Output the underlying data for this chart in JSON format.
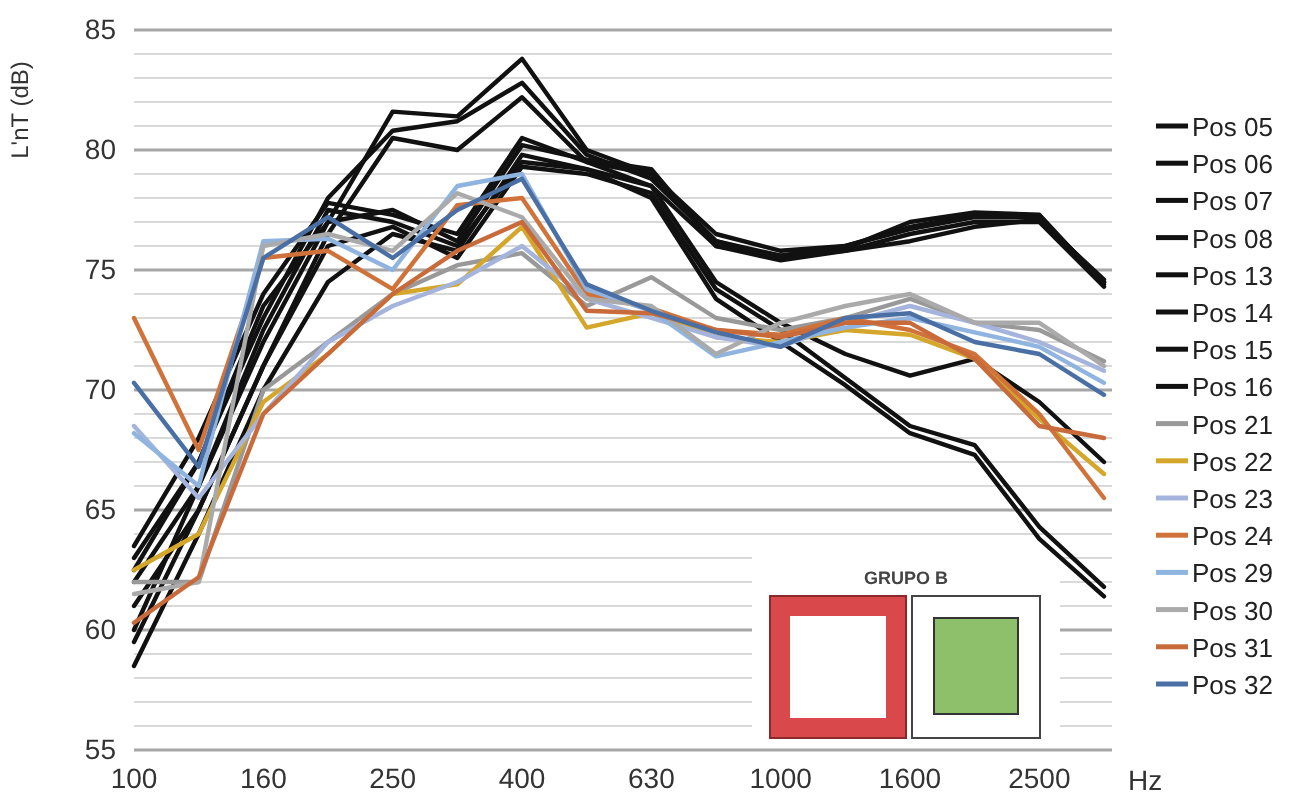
{
  "chart_data": {
    "type": "line",
    "ylabel": "L'nT (dB)",
    "xlabel": "Hz",
    "annotations": [
      "GRUPO B"
    ],
    "categories": [
      "100",
      null,
      "160",
      null,
      "250",
      null,
      "400",
      null,
      "630",
      null,
      "1000",
      null,
      "1600",
      null,
      "2500",
      null
    ],
    "ylim": [
      55,
      85
    ],
    "yticks": [
      55,
      {
        "value": 56,
        "label": null
      },
      {
        "value": 57,
        "label": null
      },
      {
        "value": 58,
        "label": null
      },
      {
        "value": 59,
        "label": null
      },
      60,
      {
        "value": 61,
        "label": null
      },
      {
        "value": 62,
        "label": null
      },
      {
        "value": 63,
        "label": null
      },
      {
        "value": 64,
        "label": null
      },
      65,
      {
        "value": 66,
        "label": null
      },
      {
        "value": 67,
        "label": null
      },
      {
        "value": 68,
        "label": null
      },
      {
        "value": 69,
        "label": null
      },
      70,
      {
        "value": 71,
        "label": null
      },
      {
        "value": 72,
        "label": null
      },
      {
        "value": 73,
        "label": null
      },
      {
        "value": 74,
        "label": null
      },
      75,
      {
        "value": 76,
        "label": null
      },
      {
        "value": 77,
        "label": null
      },
      {
        "value": 78,
        "label": null
      },
      {
        "value": 79,
        "label": null
      },
      80,
      {
        "value": 81,
        "label": null
      },
      {
        "value": 82,
        "label": null
      },
      {
        "value": 83,
        "label": null
      },
      {
        "value": 84,
        "label": null
      },
      85
    ],
    "grid": "y",
    "legend": "right",
    "marker": "none",
    "line_style": "solid",
    "series": [
      {
        "name": "Pos 05",
        "color": "#111111",
        "values": [
          62,
          66,
          72,
          77,
          81.6,
          81.4,
          83.8,
          80,
          79,
          76.5,
          75.8,
          76,
          76.8,
          77.3,
          77.2,
          74.5
        ]
      },
      {
        "name": "Pos 06",
        "color": "#111111",
        "values": [
          63,
          67,
          73,
          78,
          80.8,
          81.2,
          82.8,
          79.8,
          78.8,
          76.2,
          75.6,
          75.8,
          76.5,
          77,
          77,
          74.3
        ]
      },
      {
        "name": "Pos 07",
        "color": "#111111",
        "values": [
          61,
          65,
          71,
          76.5,
          80.5,
          80,
          82.2,
          79.5,
          78.5,
          76,
          75.4,
          75.8,
          76.2,
          76.8,
          77.1,
          74.6
        ]
      },
      {
        "name": "Pos 08",
        "color": "#111111",
        "values": [
          63.5,
          68,
          74,
          77.8,
          77.3,
          76.5,
          80.5,
          79.5,
          79,
          76.2,
          75.5,
          75.9,
          77,
          77.4,
          77.3,
          74.4
        ]
      },
      {
        "name": "Pos 13",
        "color": "#111111",
        "values": [
          60,
          66,
          72.5,
          77.5,
          77,
          76,
          79.5,
          79.2,
          78.5,
          74.5,
          72.8,
          71.5,
          70.6,
          71.3,
          69.5,
          67
        ]
      },
      {
        "name": "Pos 14",
        "color": "#111111",
        "values": [
          59.5,
          65,
          71,
          76,
          76.8,
          75.5,
          79.3,
          79,
          78.2,
          74.2,
          72.5,
          70.5,
          68.5,
          67.7,
          64.3,
          61.8
        ]
      },
      {
        "name": "Pos 15",
        "color": "#111111",
        "values": [
          58.5,
          64,
          70,
          74.5,
          76.5,
          75.8,
          79.8,
          79.2,
          78,
          73.8,
          72,
          70.2,
          68.2,
          67.3,
          63.8,
          61.4
        ]
      },
      {
        "name": "Pos 16",
        "color": "#111111",
        "values": [
          62.5,
          67,
          73.5,
          77,
          77.5,
          76.2,
          80.2,
          79.6,
          79.2,
          76,
          75.6,
          76,
          76.7,
          77.2,
          77.2,
          74.5
        ]
      },
      {
        "name": "Pos 21",
        "color": "#999999",
        "values": [
          62,
          62,
          70,
          72,
          74,
          75.2,
          75.7,
          73.5,
          74.7,
          73,
          72.5,
          73,
          73.8,
          72.8,
          72.5,
          71.2
        ]
      },
      {
        "name": "Pos 22",
        "color": "#d4a62a",
        "values": [
          62.5,
          64,
          69.5,
          71.5,
          74,
          74.4,
          76.8,
          72.6,
          73.2,
          72.2,
          72,
          72.5,
          72.3,
          71.3,
          68.8,
          66.5
        ]
      },
      {
        "name": "Pos 23",
        "color": "#a4b4dc",
        "values": [
          68.5,
          65.5,
          69,
          72,
          73.5,
          74.5,
          76,
          73.8,
          73,
          72.2,
          71.8,
          72.8,
          73.5,
          72.8,
          72,
          70.8
        ]
      },
      {
        "name": "Pos 24",
        "color": "#d0733a",
        "values": [
          73,
          67.5,
          75.5,
          75.8,
          74.2,
          77.7,
          78,
          74,
          73.4,
          72.5,
          72.3,
          73,
          72.5,
          71.5,
          69,
          65.5
        ]
      },
      {
        "name": "Pos 29",
        "color": "#8fb4e0",
        "values": [
          68.2,
          66,
          76.2,
          76.3,
          75,
          78.5,
          79,
          74.2,
          73.3,
          71.4,
          72,
          72.6,
          73,
          72.4,
          71.8,
          70.3
        ]
      },
      {
        "name": "Pos 30",
        "color": "#aaaaaa",
        "values": [
          61.5,
          62,
          76,
          76.5,
          75.8,
          78.2,
          77.2,
          73.8,
          73.5,
          71.5,
          72.8,
          73.5,
          74,
          72.8,
          72.8,
          71
        ]
      },
      {
        "name": "Pos 31",
        "color": "#c86a3a",
        "values": [
          60.3,
          62.2,
          69,
          71.5,
          74,
          75.8,
          77,
          73.3,
          73.2,
          72.5,
          72.2,
          72.8,
          72.8,
          71.3,
          68.5,
          68
        ]
      },
      {
        "name": "Pos 32",
        "color": "#4a6fa5",
        "values": [
          70.3,
          66.8,
          75.5,
          77.2,
          75.5,
          77.5,
          78.8,
          74.4,
          73.3,
          72.4,
          71.8,
          73,
          73.2,
          72,
          71.5,
          69.8
        ]
      }
    ]
  }
}
